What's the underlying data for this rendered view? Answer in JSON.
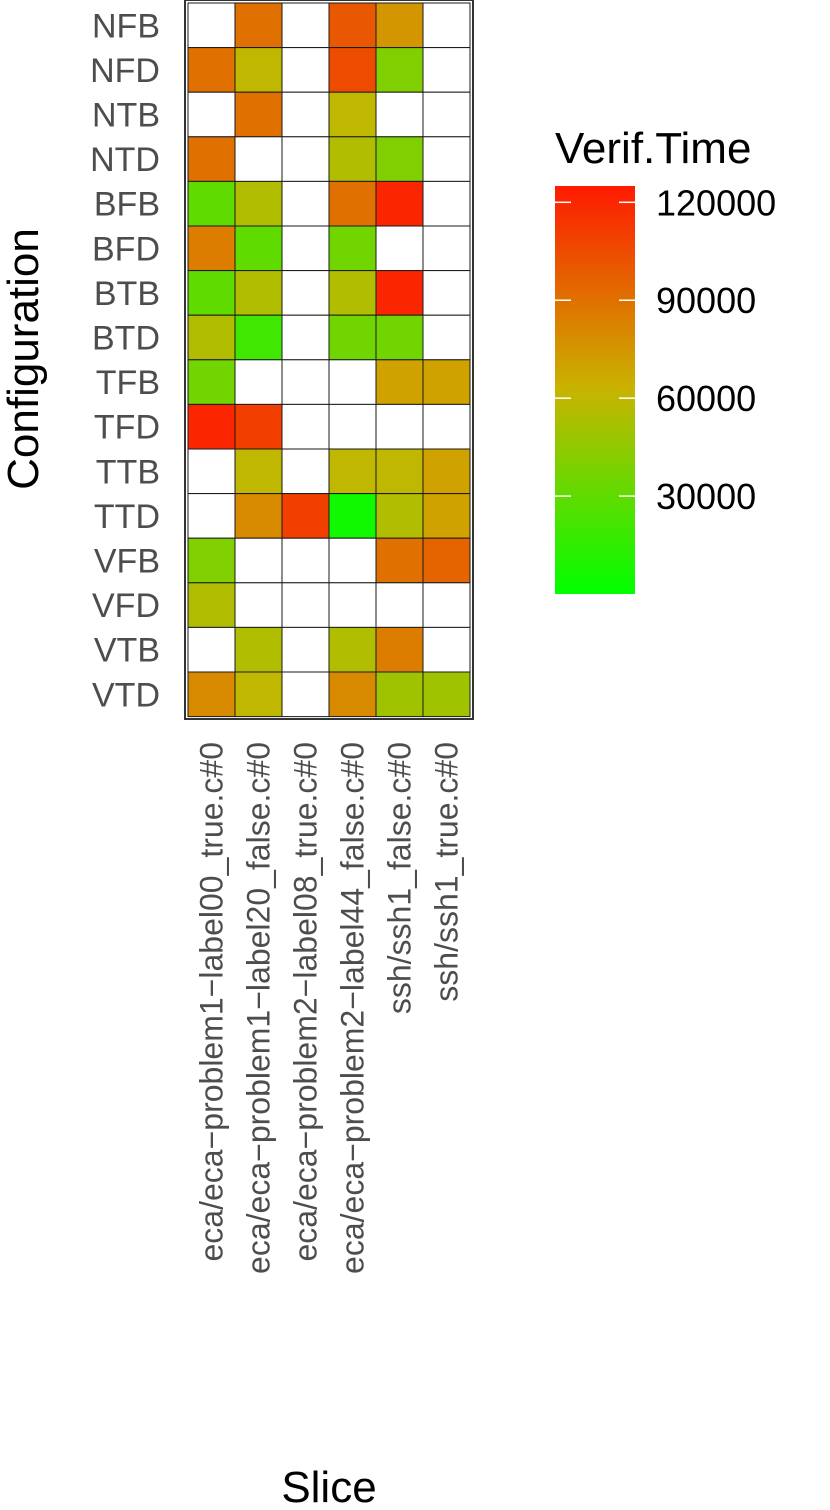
{
  "chart_data": {
    "type": "heatmap",
    "xlabel": "Slice",
    "ylabel": "Configuration",
    "x": [
      "eca/eca−problem1−label00_true.c#0",
      "eca/eca−problem1−label20_false.c#0",
      "eca/eca−problem2−label08_true.c#0",
      "eca/eca−problem2−label44_false.c#0",
      "ssh/ssh1_false.c#0",
      "ssh/ssh1_true.c#0"
    ],
    "y": [
      "NFB",
      "NFD",
      "NTB",
      "NTD",
      "BFB",
      "BFD",
      "BTB",
      "BTD",
      "TFB",
      "TFD",
      "TTB",
      "TTD",
      "VFB",
      "VFD",
      "VTB",
      "VTD"
    ],
    "values": [
      [
        null,
        90000,
        null,
        100000,
        75000,
        null
      ],
      [
        90000,
        60000,
        null,
        105000,
        40000,
        null
      ],
      [
        null,
        90000,
        null,
        60000,
        null,
        null
      ],
      [
        90000,
        null,
        null,
        55000,
        40000,
        null
      ],
      [
        30000,
        55000,
        null,
        90000,
        120000,
        null
      ],
      [
        85000,
        30000,
        null,
        35000,
        null,
        null
      ],
      [
        30000,
        55000,
        null,
        55000,
        120000,
        null
      ],
      [
        55000,
        20000,
        null,
        35000,
        35000,
        null
      ],
      [
        35000,
        null,
        null,
        null,
        70000,
        70000
      ],
      [
        120000,
        110000,
        null,
        null,
        null,
        null
      ],
      [
        null,
        60000,
        null,
        60000,
        60000,
        70000
      ],
      [
        null,
        80000,
        110000,
        5000,
        55000,
        70000
      ],
      [
        40000,
        null,
        null,
        null,
        90000,
        95000
      ],
      [
        55000,
        null,
        null,
        null,
        null,
        null
      ],
      [
        null,
        55000,
        null,
        55000,
        85000,
        null
      ],
      [
        80000,
        60000,
        null,
        80000,
        50000,
        50000
      ]
    ],
    "missing_color": "#ffffff",
    "colorscale": {
      "title": "Verif.Time",
      "low_color": "#00ff00",
      "mid_color": "#c8b400",
      "high_color": "#ff1a00",
      "min": 0,
      "max": 125000,
      "ticks": [
        120000,
        90000,
        60000,
        30000
      ]
    },
    "legend_position": "right",
    "grid": false
  }
}
